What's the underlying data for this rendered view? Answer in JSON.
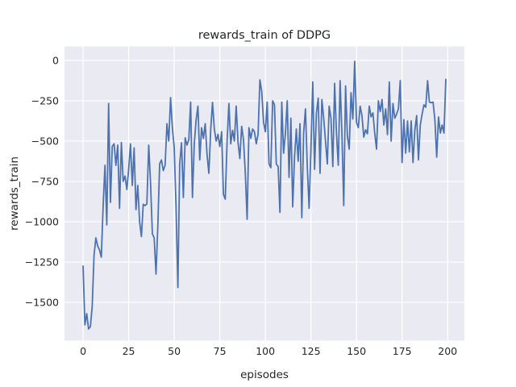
{
  "figure": {
    "background": "#ffffff"
  },
  "chart_data": {
    "type": "line",
    "title": "rewards_train of DDPG",
    "xlabel": "episodes",
    "ylabel": "rewards_train",
    "plot_bg": "#eaeaf2",
    "grid_color": "#ffffff",
    "text_color": "#262626",
    "grid": true,
    "legend_position": "none",
    "xlim": [
      -10.2,
      209.2
    ],
    "ylim": [
      -1737,
      87
    ],
    "x_ticks": [
      0,
      25,
      50,
      75,
      100,
      125,
      150,
      175,
      200
    ],
    "x_tick_labels": [
      "0",
      "25",
      "50",
      "75",
      "100",
      "125",
      "150",
      "175",
      "200"
    ],
    "y_ticks": [
      0,
      -250,
      -500,
      -750,
      -1000,
      -1250,
      -1500
    ],
    "y_tick_labels": [
      "0",
      "−250",
      "−500",
      "−750",
      "−1000",
      "−1250",
      "−1500"
    ],
    "series": [
      {
        "name": "rewards_train",
        "color": "#4c72b0",
        "linewidth": 1.8,
        "x_start": 0,
        "x_step": 1,
        "values": [
          -1275,
          -1640,
          -1570,
          -1665,
          -1650,
          -1525,
          -1210,
          -1100,
          -1150,
          -1175,
          -1220,
          -900,
          -650,
          -1020,
          -267,
          -880,
          -533,
          -517,
          -650,
          -525,
          -917,
          -508,
          -750,
          -717,
          -800,
          -675,
          -517,
          -775,
          -542,
          -925,
          -775,
          -1000,
          -1092,
          -892,
          -900,
          -890,
          -525,
          -758,
          -1075,
          -1100,
          -1325,
          -1025,
          -642,
          -617,
          -683,
          -650,
          -392,
          -500,
          -230,
          -420,
          -540,
          -910,
          -1408,
          -642,
          -510,
          -850,
          -480,
          -525,
          -492,
          -258,
          -850,
          -517,
          -370,
          -283,
          -617,
          -417,
          -483,
          -392,
          -583,
          -700,
          -433,
          -260,
          -425,
          -500,
          -458,
          -533,
          -442,
          -830,
          -860,
          -500,
          -267,
          -517,
          -433,
          -500,
          -283,
          -508,
          -608,
          -408,
          -492,
          -700,
          -985,
          -417,
          -483,
          -425,
          -442,
          -517,
          -458,
          -120,
          -192,
          -383,
          -442,
          -258,
          -640,
          -665,
          -250,
          -275,
          -642,
          -658,
          -942,
          -258,
          -575,
          -452,
          -250,
          -725,
          -358,
          -908,
          -600,
          -425,
          -625,
          -392,
          -975,
          -450,
          -300,
          -658,
          -917,
          -550,
          -133,
          -675,
          -325,
          -233,
          -700,
          -242,
          -358,
          -500,
          -642,
          -283,
          -358,
          -658,
          -142,
          -450,
          -650,
          -125,
          -450,
          -900,
          -158,
          -467,
          -550,
          -200,
          -363,
          -5,
          -383,
          -417,
          -283,
          -342,
          -475,
          -430,
          -455,
          -283,
          -350,
          -325,
          -450,
          -550,
          -250,
          -317,
          -242,
          -400,
          -300,
          -460,
          -133,
          -500,
          -267,
          -358,
          -333,
          -300,
          -125,
          -633,
          -367,
          -575,
          -375,
          -567,
          -375,
          -633,
          -433,
          -342,
          -617,
          -400,
          -333,
          -275,
          -290,
          -125,
          -258,
          -262,
          -258,
          -367,
          -600,
          -350,
          -450,
          -400,
          -450,
          -117
        ]
      }
    ]
  }
}
